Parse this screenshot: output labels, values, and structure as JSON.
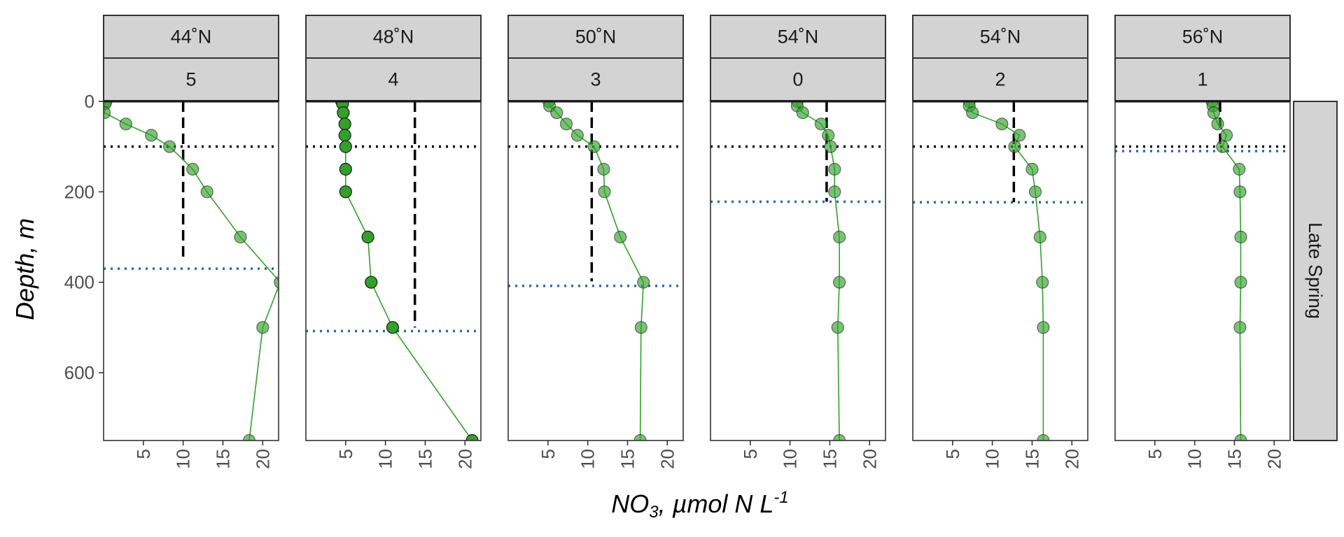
{
  "chart_data": {
    "type": "line",
    "xlabel": {
      "main": "NO",
      "sub": "3",
      "rest": ", µmol N L",
      "sup": "-1"
    },
    "ylabel": "Depth, m",
    "row_strip": "Late Spring",
    "xlim": [
      0,
      22
    ],
    "ylim": [
      0,
      750
    ],
    "y_reversed": true,
    "x_ticks": [
      5,
      10,
      15,
      20
    ],
    "y_ticks": [
      0,
      200,
      400,
      600
    ],
    "grid": false,
    "colors": {
      "line": "#33a02c",
      "point_fill": "#33a02c",
      "point_edge": "#1a1a1a",
      "mld_line": "#2c6aa0",
      "ref_line": "#000000",
      "strip": "#d3d3d3"
    },
    "panels": [
      {
        "lat": "44˚N",
        "station": "5",
        "ref_depth": 100,
        "mld": 370,
        "vline_x": 10.0,
        "vline_depth": [
          0,
          345
        ],
        "points": [
          [
            0.3,
            0
          ],
          [
            0.2,
            5
          ],
          [
            0.1,
            25
          ],
          [
            2.8,
            50
          ],
          [
            6.0,
            75
          ],
          [
            8.3,
            100
          ],
          [
            11.2,
            150
          ],
          [
            13.0,
            200
          ],
          [
            17.2,
            300
          ],
          [
            22.2,
            400
          ],
          [
            20.0,
            500
          ],
          [
            18.3,
            750
          ]
        ],
        "solid": []
      },
      {
        "lat": "48˚N",
        "station": "4",
        "ref_depth": 100,
        "mld": 508,
        "vline_x": 13.7,
        "vline_depth": [
          0,
          500
        ],
        "points": [
          [
            4.5,
            0
          ],
          [
            4.6,
            5
          ],
          [
            4.7,
            25
          ],
          [
            4.9,
            50
          ],
          [
            4.9,
            75
          ],
          [
            5.0,
            100
          ],
          [
            5.0,
            150
          ],
          [
            5.0,
            200
          ],
          [
            7.8,
            300
          ],
          [
            8.2,
            400
          ],
          [
            10.9,
            500
          ],
          [
            20.9,
            750
          ]
        ],
        "solid": [
          0,
          1,
          2,
          3,
          4,
          5,
          6,
          7,
          8,
          9,
          10,
          11
        ]
      },
      {
        "lat": "50˚N",
        "station": "3",
        "ref_depth": 100,
        "mld": 408,
        "vline_x": 10.5,
        "vline_depth": [
          0,
          398
        ],
        "points": [
          [
            5.1,
            0
          ],
          [
            5.2,
            10
          ],
          [
            6.1,
            25
          ],
          [
            7.3,
            50
          ],
          [
            8.7,
            75
          ],
          [
            10.8,
            100
          ],
          [
            12.0,
            150
          ],
          [
            12.1,
            200
          ],
          [
            14.1,
            300
          ],
          [
            17.0,
            400
          ],
          [
            16.7,
            500
          ],
          [
            16.6,
            750
          ]
        ],
        "solid": []
      },
      {
        "lat": "54˚N",
        "station": "0",
        "ref_depth": 100,
        "mld": 222,
        "vline_x": 14.6,
        "vline_depth": [
          0,
          222
        ],
        "points": [
          [
            10.9,
            0
          ],
          [
            10.9,
            10
          ],
          [
            11.6,
            25
          ],
          [
            13.9,
            50
          ],
          [
            14.8,
            75
          ],
          [
            15.1,
            100
          ],
          [
            15.6,
            150
          ],
          [
            15.6,
            200
          ],
          [
            16.2,
            300
          ],
          [
            16.2,
            400
          ],
          [
            16.0,
            500
          ],
          [
            16.2,
            750
          ]
        ],
        "solid": []
      },
      {
        "lat": "54˚N",
        "station": "2",
        "ref_depth": 100,
        "mld": 223,
        "vline_x": 12.7,
        "vline_depth": [
          0,
          223
        ],
        "points": [
          [
            7.1,
            0
          ],
          [
            7.1,
            10
          ],
          [
            7.5,
            25
          ],
          [
            11.2,
            50
          ],
          [
            13.4,
            75
          ],
          [
            12.8,
            100
          ],
          [
            15.0,
            150
          ],
          [
            15.4,
            200
          ],
          [
            16.0,
            300
          ],
          [
            16.3,
            400
          ],
          [
            16.4,
            500
          ],
          [
            16.4,
            750
          ]
        ],
        "solid": []
      },
      {
        "lat": "56˚N",
        "station": "1",
        "ref_depth": 100,
        "mld": 110,
        "vline_x": 13.2,
        "vline_depth": [
          0,
          102
        ],
        "points": [
          [
            12.2,
            0
          ],
          [
            12.3,
            10
          ],
          [
            12.4,
            25
          ],
          [
            12.9,
            50
          ],
          [
            14.0,
            75
          ],
          [
            13.5,
            100
          ],
          [
            15.6,
            150
          ],
          [
            15.7,
            200
          ],
          [
            15.8,
            300
          ],
          [
            15.8,
            400
          ],
          [
            15.7,
            500
          ],
          [
            15.8,
            750
          ]
        ],
        "solid": []
      }
    ]
  }
}
